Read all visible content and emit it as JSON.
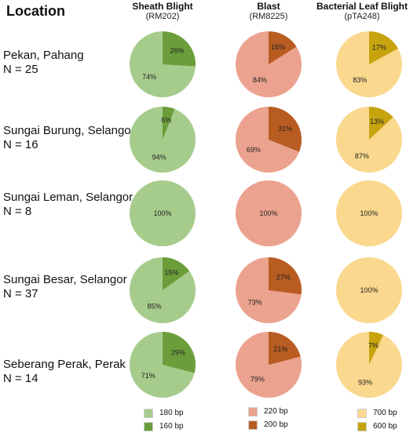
{
  "title": "Location",
  "chart_data": {
    "type": "pie",
    "columns": [
      {
        "name": "Sheath Blight",
        "marker": "(RM202)",
        "colors": [
          "#a6cc8c",
          "#6b9e3b"
        ],
        "legend": [
          "180 bp",
          "160 bp"
        ]
      },
      {
        "name": "Blast",
        "marker": "(RM8225)",
        "colors": [
          "#eba28e",
          "#b85c22"
        ],
        "legend": [
          "220 bp",
          "200 bp"
        ]
      },
      {
        "name": "Bacterial Leaf Blight",
        "marker": "(pTA248)",
        "colors": [
          "#fad88e",
          "#c7a40e"
        ],
        "legend": [
          "700 bp",
          "600 bp"
        ]
      }
    ],
    "rows": [
      {
        "location": "Pekan, Pahang",
        "n": "N = 25",
        "values": [
          [
            74,
            26
          ],
          [
            84,
            16
          ],
          [
            83,
            17
          ]
        ]
      },
      {
        "location": "Sungai Burung, Selangor",
        "n": "N = 16",
        "values": [
          [
            94,
            6
          ],
          [
            69,
            31
          ],
          [
            87,
            13
          ]
        ]
      },
      {
        "location": "Sungai Leman, Selangor",
        "n": "N = 8",
        "values": [
          [
            100,
            0
          ],
          [
            100,
            0
          ],
          [
            100,
            0
          ]
        ]
      },
      {
        "location": "Sungai Besar, Selangor",
        "n": "N = 37",
        "values": [
          [
            85,
            15
          ],
          [
            73,
            27
          ],
          [
            100,
            0
          ]
        ]
      },
      {
        "location": "Seberang Perak, Perak",
        "n": "N = 14",
        "values": [
          [
            71,
            29
          ],
          [
            79,
            21
          ],
          [
            93,
            7
          ]
        ]
      }
    ]
  }
}
